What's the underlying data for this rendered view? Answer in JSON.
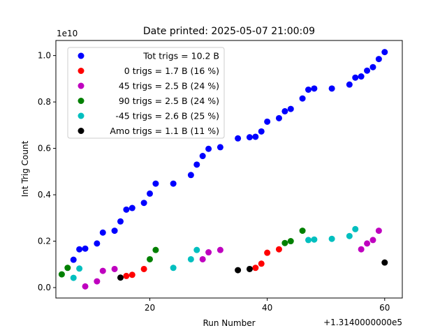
{
  "chart_data": {
    "type": "scatter",
    "title": "Date printed: 2025-05-07 21:00:09",
    "xlabel": "Run Number",
    "ylabel": "Int Trig Count",
    "x_offset_label": "+1.3140000000e5",
    "y_scale_label": "1e10",
    "x_offset": 131400,
    "y_scale": 10000000000,
    "xlim": [
      131404,
      131463
    ],
    "ylim": [
      -0.045,
      1.065
    ],
    "x_ticks": [
      {
        "value": 131420,
        "label": "20"
      },
      {
        "value": 131440,
        "label": "40"
      },
      {
        "value": 131460,
        "label": "60"
      }
    ],
    "y_ticks": [
      {
        "value": 0.0,
        "label": "0.0"
      },
      {
        "value": 0.2,
        "label": "0.2"
      },
      {
        "value": 0.4,
        "label": "0.4"
      },
      {
        "value": 0.6,
        "label": "0.6"
      },
      {
        "value": 0.8,
        "label": "0.8"
      },
      {
        "value": 1.0,
        "label": "1.0"
      }
    ],
    "grid": false,
    "legend_position": "upper-left",
    "series": [
      {
        "name": "Tot trigs = 10.2 B",
        "color": "#0000ff",
        "x": [
          131407,
          131408,
          131409,
          131411,
          131412,
          131414,
          131415,
          131416,
          131417,
          131419,
          131420,
          131421,
          131424,
          131427,
          131428,
          131429,
          131430,
          131432,
          131435,
          131437,
          131438,
          131439,
          131440,
          131442,
          131443,
          131444,
          131446,
          131447,
          131448,
          131451,
          131454,
          131455,
          131456,
          131457,
          131458,
          131459,
          131460
        ],
        "y": [
          0.12,
          0.165,
          0.168,
          0.19,
          0.237,
          0.245,
          0.285,
          0.336,
          0.343,
          0.365,
          0.405,
          0.448,
          0.448,
          0.485,
          0.53,
          0.567,
          0.598,
          0.605,
          0.643,
          0.648,
          0.65,
          0.673,
          0.715,
          0.73,
          0.76,
          0.77,
          0.815,
          0.853,
          0.858,
          0.858,
          0.875,
          0.905,
          0.91,
          0.935,
          0.95,
          0.985,
          1.015
        ]
      },
      {
        "name": "0 trigs = 1.7 B (16 %)",
        "color": "#ff0000",
        "x": [
          131416,
          131417,
          131419,
          131438,
          131439,
          131440,
          131442
        ],
        "y": [
          0.05,
          0.055,
          0.08,
          0.085,
          0.103,
          0.15,
          0.165
        ]
      },
      {
        "name": "45 trigs = 2.5 B (24 %)",
        "color": "#bf00bf",
        "x": [
          131409,
          131411,
          131412,
          131414,
          131429,
          131430,
          131432,
          131456,
          131457,
          131458,
          131459
        ],
        "y": [
          0.005,
          0.027,
          0.072,
          0.08,
          0.122,
          0.152,
          0.162,
          0.165,
          0.19,
          0.205,
          0.245
        ]
      },
      {
        "name": "90 trigs = 2.5 B (24 %)",
        "color": "#008000",
        "x": [
          131405,
          131406,
          131420,
          131421,
          131443,
          131444,
          131446
        ],
        "y": [
          0.057,
          0.085,
          0.122,
          0.162,
          0.192,
          0.2,
          0.245
        ]
      },
      {
        "name": "-45 trigs = 2.6 B (25 %)",
        "color": "#00bfbf",
        "x": [
          131407,
          131408,
          131424,
          131427,
          131428,
          131447,
          131448,
          131451,
          131454,
          131455
        ],
        "y": [
          0.042,
          0.082,
          0.085,
          0.122,
          0.162,
          0.205,
          0.207,
          0.21,
          0.222,
          0.252
        ]
      },
      {
        "name": "Amo trigs = 1.1 B (11 %)",
        "color": "#000000",
        "x": [
          131415,
          131435,
          131437,
          131460
        ],
        "y": [
          0.043,
          0.075,
          0.08,
          0.108
        ]
      }
    ]
  }
}
